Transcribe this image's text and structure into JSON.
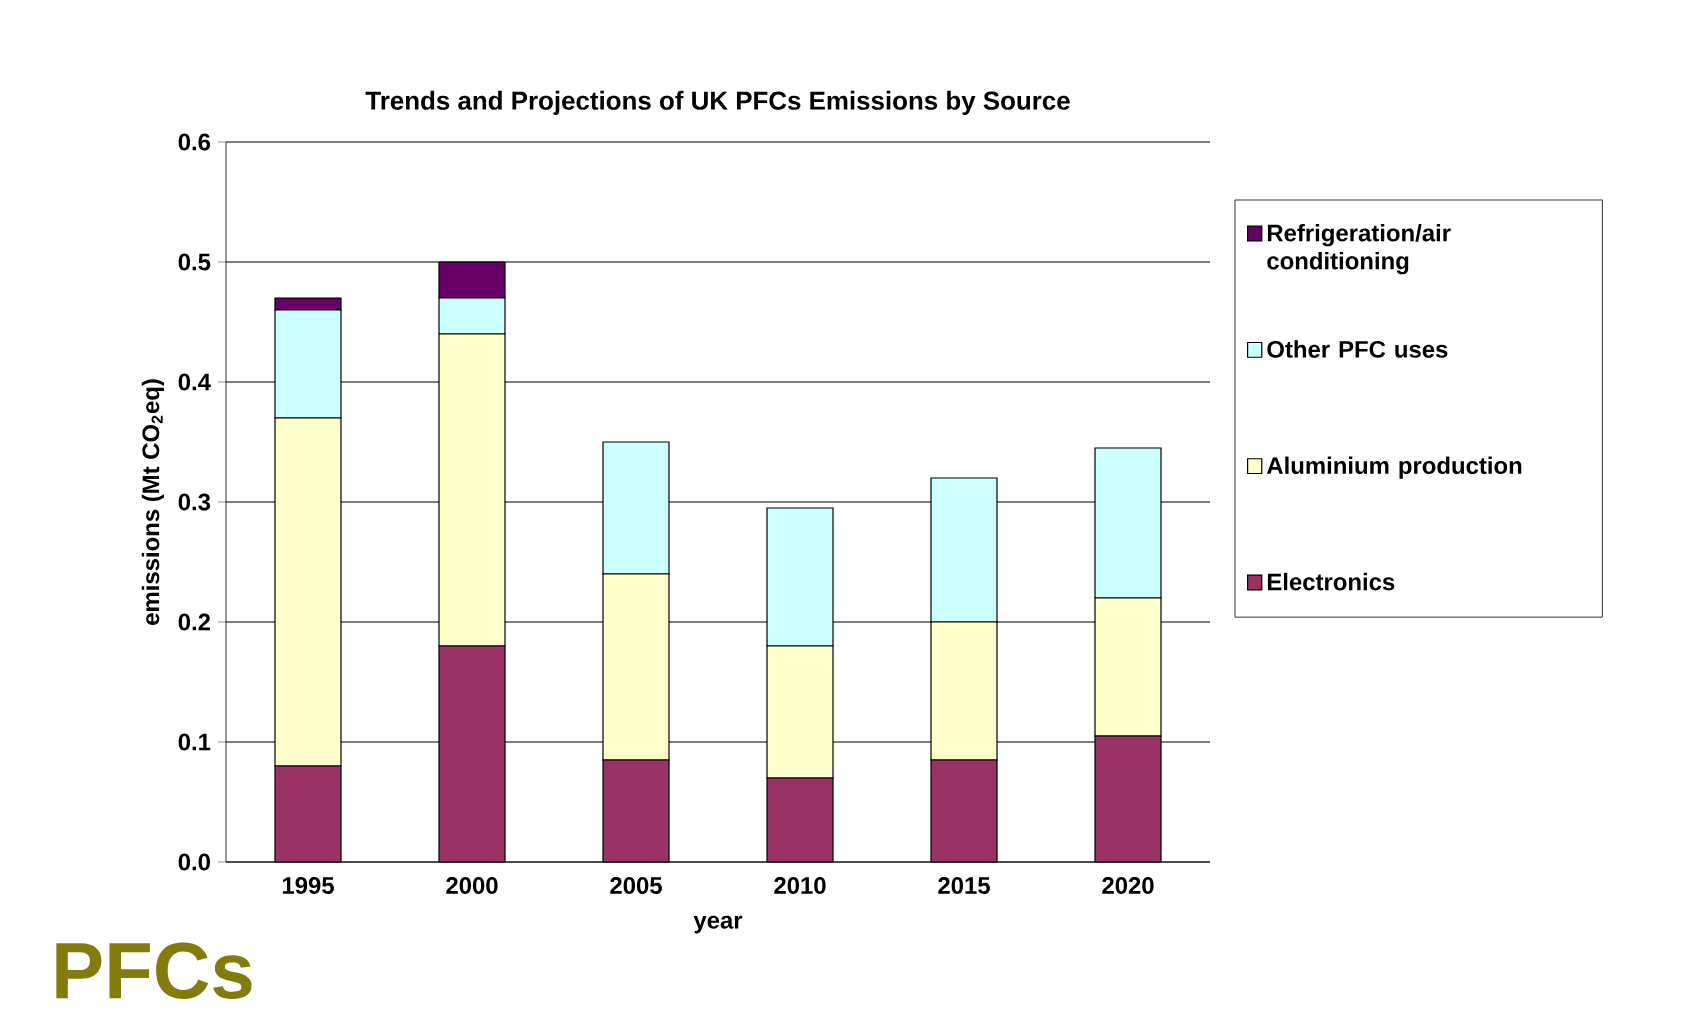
{
  "chart_data": {
    "type": "bar",
    "title": "Trends and Projections of UK PFCs Emissions by Source",
    "xlabel": "year",
    "ylabel": "emissions (Mt CO$_{2}$eq)",
    "categories": [
      "1995",
      "2000",
      "2005",
      "2010",
      "2015",
      "2020"
    ],
    "series": [
      {
        "name": "Electronics",
        "color": "#993366",
        "values": [
          0.08,
          0.18,
          0.085,
          0.07,
          0.085,
          0.105
        ]
      },
      {
        "name": "Aluminium production",
        "color": "#ffffcc",
        "values": [
          0.29,
          0.26,
          0.155,
          0.11,
          0.115,
          0.115
        ]
      },
      {
        "name": "Other PFC uses",
        "color": "#ccffff",
        "values": [
          0.09,
          0.03,
          0.11,
          0.115,
          0.12,
          0.125
        ]
      },
      {
        "name": "Refrigeration/air conditioning",
        "color": "#660066",
        "values": [
          0.01,
          0.03,
          0,
          0,
          0,
          0
        ]
      }
    ],
    "stacked": true,
    "ylim": [
      0,
      0.6
    ],
    "yticks": [
      {
        "value": 0,
        "label": "0.0"
      },
      {
        "value": 0.1,
        "label": "0.1"
      },
      {
        "value": 0.2,
        "label": "0.2"
      },
      {
        "value": 0.3,
        "label": "0.3"
      },
      {
        "value": 0.4,
        "label": "0.4"
      },
      {
        "value": 0.5,
        "label": "0.5"
      },
      {
        "value": 0.6,
        "label": "0.6"
      }
    ],
    "grid": "y",
    "legend": "right",
    "annotations": [
      "PFCs"
    ]
  }
}
